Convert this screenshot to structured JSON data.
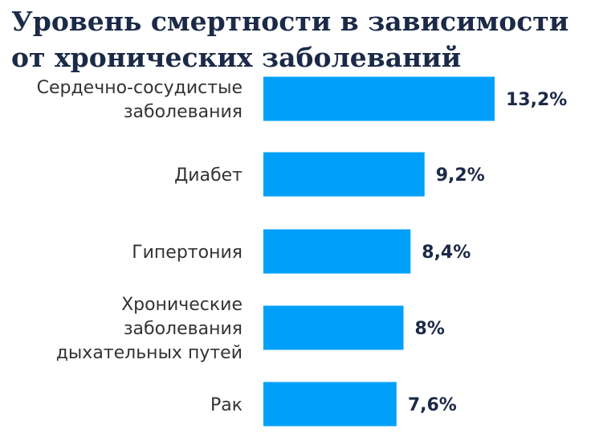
{
  "chart_data": {
    "type": "bar",
    "orientation": "horizontal",
    "title_lines": [
      "Уровень смертности в зависимости",
      "от хронических заболеваний"
    ],
    "categories": [
      [
        "Сердечно-сосудистые",
        "заболевания"
      ],
      [
        "Диабет"
      ],
      [
        "Гипертония"
      ],
      [
        "Хронические",
        "заболевания",
        "дыхательных путей"
      ],
      [
        "Рак"
      ]
    ],
    "values": [
      13.2,
      9.2,
      8.4,
      8,
      7.6
    ],
    "value_labels": [
      "13,2%",
      "9,2%",
      "8,4%",
      "8%",
      "7,6%"
    ],
    "unit": "%",
    "xlim": [
      0,
      13.2
    ],
    "grid": false,
    "bar_color": "#00a0fa"
  }
}
